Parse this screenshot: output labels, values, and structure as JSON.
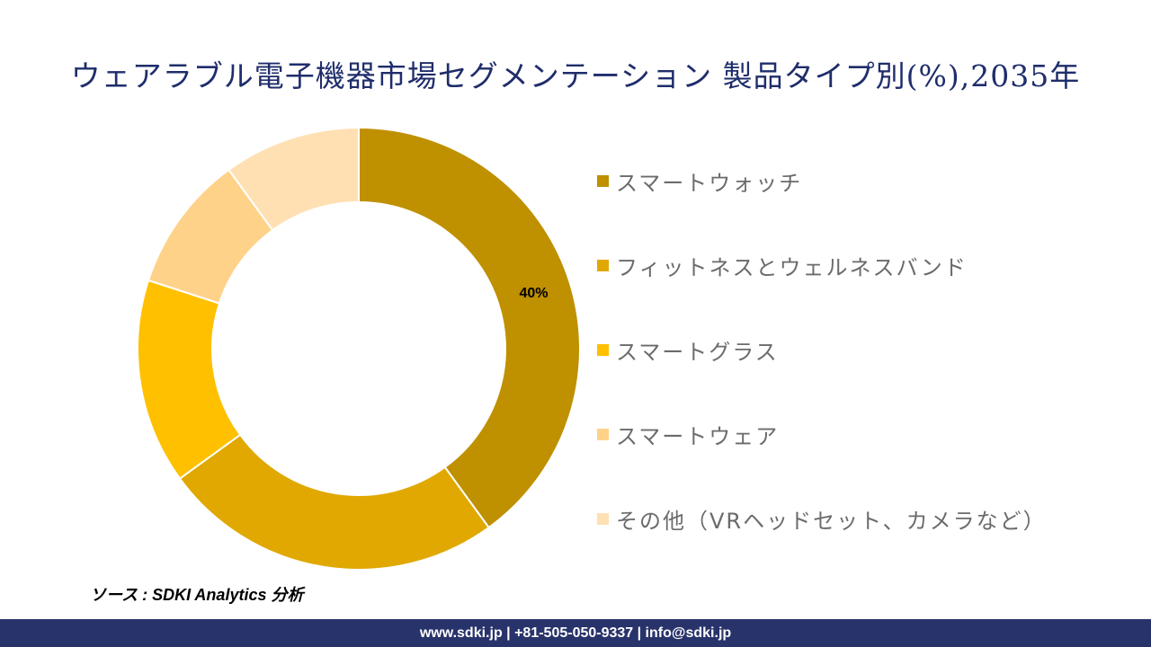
{
  "chart_data": {
    "type": "donut",
    "title": "ウェアラブル電子機器市場セグメンテーション 製品タイプ別(%),2035年",
    "categories": [
      "スマートウォッチ",
      "フィットネスとウェルネスバンド",
      "スマートグラス",
      "スマートウェア",
      "その他（VRヘッドセット、カメラなど）"
    ],
    "values": [
      40,
      25,
      15,
      10,
      10
    ],
    "colors": [
      "#BF9000",
      "#E0A800",
      "#FFC000",
      "#FFD28A",
      "#FFE0B3"
    ],
    "data_labels": [
      "40%",
      "",
      "",
      "",
      ""
    ],
    "legend_position": "right"
  },
  "source": "ソース : SDKI Analytics 分析",
  "footer": "www.sdki.jp | +81-505-050-9337 | info@sdki.jp"
}
